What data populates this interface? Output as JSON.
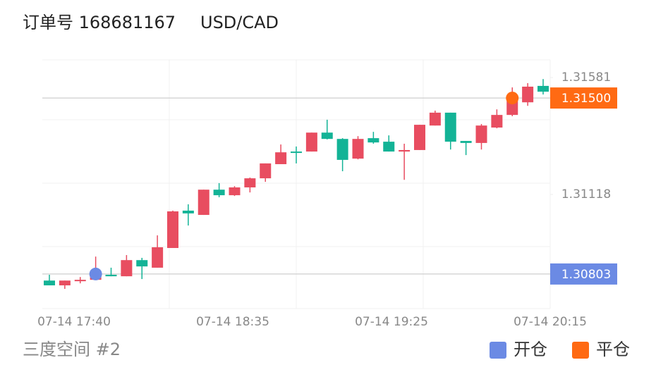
{
  "header": {
    "order": "订单号 168681167",
    "symbol": "USD/CAD"
  },
  "chart_data": {
    "type": "candlestick",
    "up_color": "#e84d60",
    "down_color": "#13b396",
    "x_labels": [
      "07-14 17:40",
      "07-14 18:35",
      "07-14 19:25",
      "07-14 20:15"
    ],
    "ylim": [
      1.30666,
      1.31651
    ],
    "yticks": [
      1.31581,
      1.31118
    ],
    "open": [
      1.30777,
      1.30758,
      1.30775,
      1.3078,
      1.308,
      1.30794,
      1.30858,
      1.30828,
      1.30906,
      1.31054,
      1.31037,
      1.31137,
      1.31115,
      1.31146,
      1.31182,
      1.31238,
      1.31288,
      1.31288,
      1.31363,
      1.31338,
      1.3126,
      1.31341,
      1.31327,
      1.31288,
      1.31294,
      1.31391,
      1.31442,
      1.3133,
      1.31322,
      1.31383,
      1.31433,
      1.31483,
      1.31548
    ],
    "high": [
      1.308,
      1.30777,
      1.30791,
      1.30872,
      1.30828,
      1.30878,
      1.30867,
      1.30956,
      1.31054,
      1.31079,
      1.31137,
      1.31163,
      1.31151,
      1.31185,
      1.31241,
      1.31316,
      1.31308,
      1.31363,
      1.31414,
      1.31341,
      1.31349,
      1.31366,
      1.31352,
      1.31319,
      1.31394,
      1.3145,
      1.31442,
      1.3133,
      1.31397,
      1.31455,
      1.31542,
      1.31559,
      1.31575
    ],
    "low": [
      1.30758,
      1.30744,
      1.30766,
      1.3078,
      1.30794,
      1.30794,
      1.30783,
      1.30828,
      1.30906,
      1.30995,
      1.31037,
      1.31107,
      1.31112,
      1.31126,
      1.31168,
      1.31238,
      1.31241,
      1.31288,
      1.31336,
      1.3121,
      1.31257,
      1.31319,
      1.31288,
      1.31176,
      1.31294,
      1.31391,
      1.31296,
      1.31274,
      1.31296,
      1.3138,
      1.31428,
      1.31469,
      1.31514
    ],
    "close": [
      1.30758,
      1.30777,
      1.3078,
      1.308,
      1.30794,
      1.30858,
      1.30833,
      1.30909,
      1.31051,
      1.31043,
      1.31137,
      1.31115,
      1.31146,
      1.31182,
      1.31241,
      1.31285,
      1.31283,
      1.31363,
      1.31338,
      1.31255,
      1.31338,
      1.31324,
      1.31288,
      1.31294,
      1.31394,
      1.31442,
      1.31327,
      1.31322,
      1.31391,
      1.31433,
      1.31495,
      1.31545,
      1.31525
    ],
    "markers": [
      {
        "name": "开仓",
        "color": "#6b8ae4",
        "index": 3,
        "value": 1.30803
      },
      {
        "name": "平仓",
        "color": "#ff6a13",
        "index": 30,
        "value": 1.315,
        "value_label": "1.31500"
      }
    ],
    "footer": "三度空间 #2"
  }
}
